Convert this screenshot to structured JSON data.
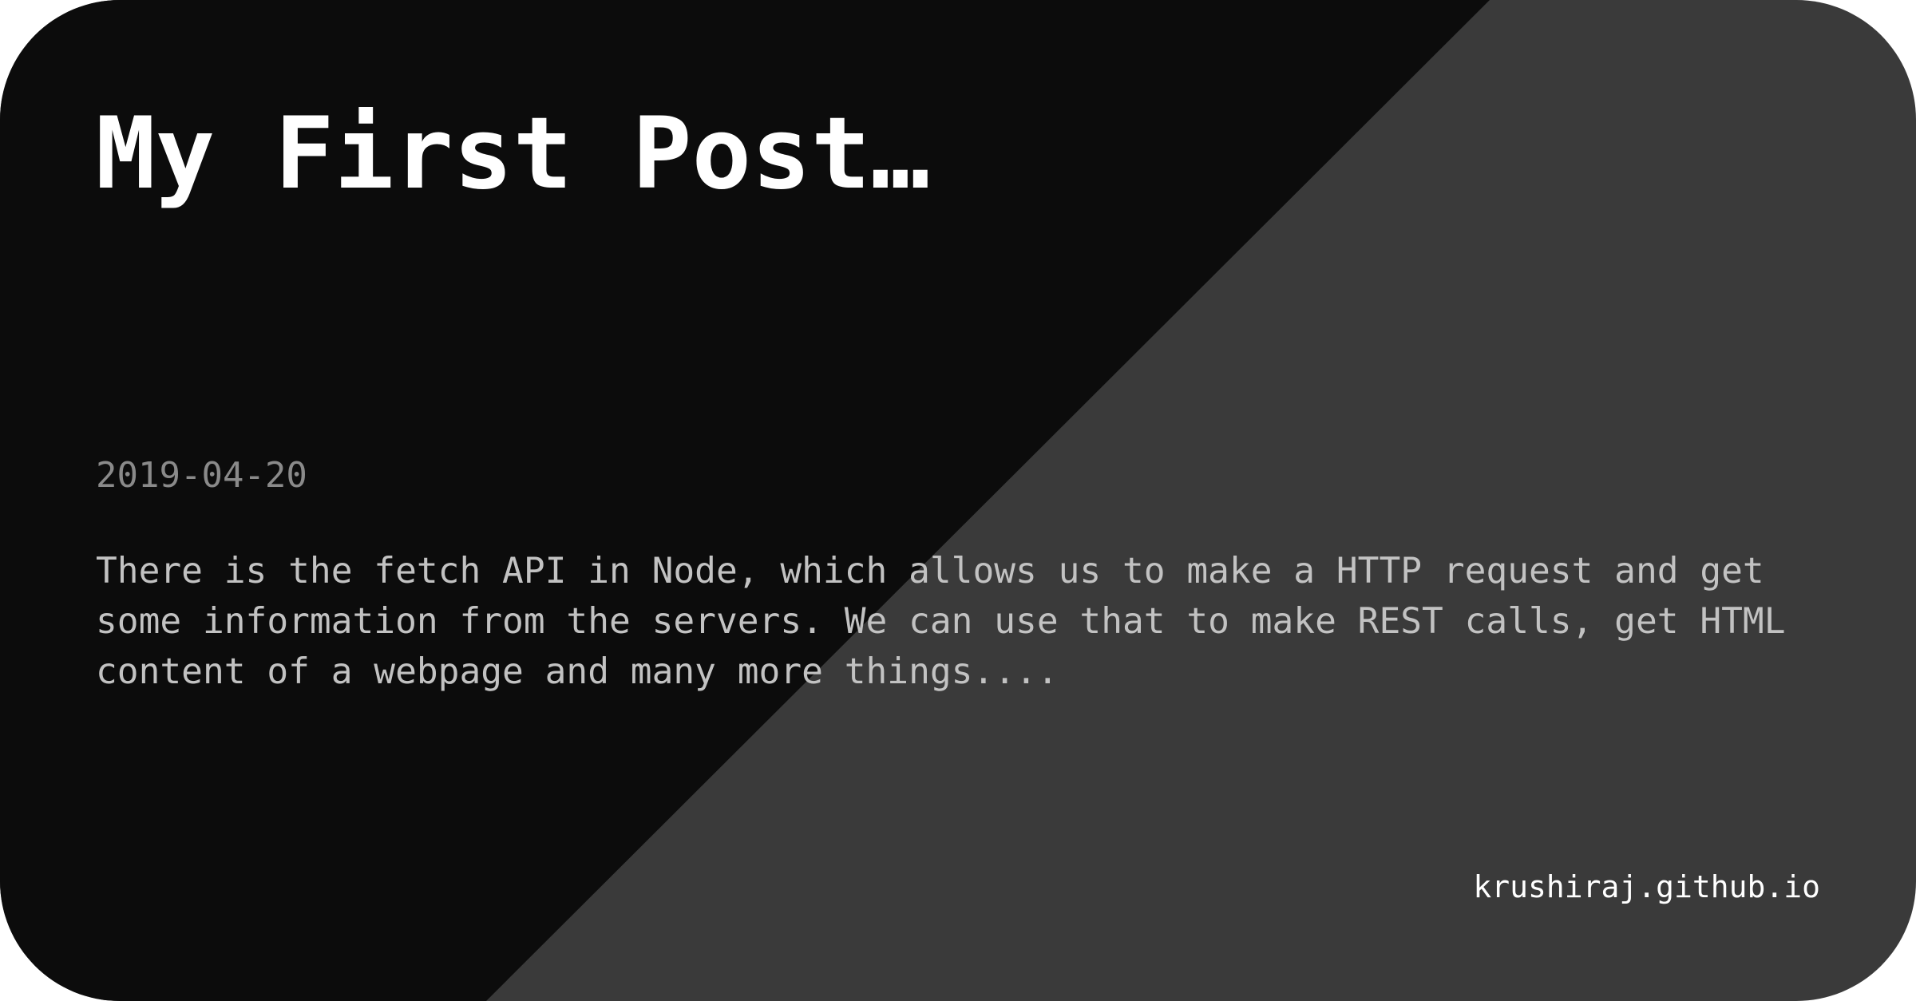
{
  "post": {
    "title": "My First Post…",
    "date": "2019-04-20",
    "excerpt": "There is the fetch API in Node, which allows us to make a HTTP request and get some information from the servers. We can use that to make REST calls, get HTML content of a webpage and many more things....",
    "site": "krushiraj.github.io"
  },
  "colors": {
    "dark_panel": "#0c0c0c",
    "light_panel": "#3a3a3a",
    "title": "#ffffff",
    "date": "#8a8a8a",
    "excerpt": "#c2c2c2",
    "site": "#ffffff"
  }
}
